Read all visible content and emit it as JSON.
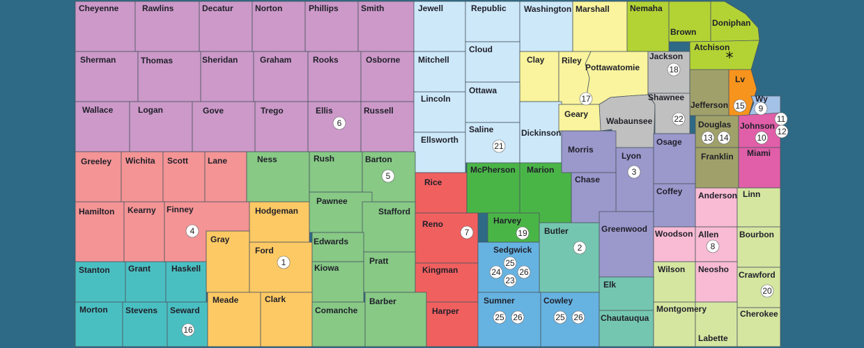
{
  "colors": {
    "background": "#2e6a85",
    "d1": "#fdc964",
    "d2": "#74c6b0",
    "d3": "#9b98cc",
    "d4": "#f49495",
    "d5": "#87c985",
    "d6": "#cc99c9",
    "d7": "#f0605f",
    "d8": "#f8bbd3",
    "d9_10": "#a4c2e8",
    "d10": "#e05fa8",
    "d11": "#a0a06a",
    "d12": "#c0c0c0",
    "d16": "#4abfc2",
    "d17": "#f9f49d",
    "d18": "#c0c0c0",
    "d19": "#4ab547",
    "d20": "#d5e6a1",
    "d21": "#cde8f9",
    "d22": "#b3d335",
    "d_lv": "#f7941d",
    "d_sed": "#66b3e2",
    "d_frank": "#a0a06a"
  },
  "counties": {
    "cheyenne": "Cheyenne",
    "rawlins": "Rawlins",
    "decatur": "Decatur",
    "norton": "Norton",
    "phillips": "Phillips",
    "smith": "Smith",
    "jewell": "Jewell",
    "republic": "Republic",
    "washington": "Washington",
    "marshall": "Marshall",
    "nemaha": "Nemaha",
    "brown": "Brown",
    "doniphan": "Doniphan",
    "atchison": "Atchison",
    "sherman": "Sherman",
    "thomas": "Thomas",
    "sheridan": "Sheridan",
    "graham": "Graham",
    "rooks": "Rooks",
    "osborne": "Osborne",
    "mitchell": "Mitchell",
    "cloud": "Cloud",
    "clay": "Clay",
    "riley": "Riley",
    "pottawatomie": "Pottawatomie",
    "jackson": "Jackson",
    "jefferson": "Jefferson",
    "lv": "Lv",
    "wy": "Wy",
    "wallace": "Wallace",
    "logan": "Logan",
    "gove": "Gove",
    "trego": "Trego",
    "ellis": "Ellis",
    "russell": "Russell",
    "lincoln": "Lincoln",
    "ottawa": "Ottawa",
    "ellsworth": "Ellsworth",
    "saline": "Saline",
    "dickinson": "Dickinson",
    "geary": "Geary",
    "wabaunsee": "Wabaunsee",
    "shawnee": "Shawnee",
    "douglas": "Douglas",
    "johnson": "Johnson",
    "greeley": "Greeley",
    "wichita": "Wichita",
    "scott": "Scott",
    "lane": "Lane",
    "ness": "Ness",
    "rush": "Rush",
    "barton": "Barton",
    "rice": "Rice",
    "mcpherson": "McPherson",
    "marion": "Marion",
    "morris": "Morris",
    "lyon": "Lyon",
    "osage": "Osage",
    "franklin": "Franklin",
    "miami": "Miami",
    "chase": "Chase",
    "hamilton": "Hamilton",
    "kearny": "Kearny",
    "finney": "Finney",
    "hodgeman": "Hodgeman",
    "pawnee": "Pawnee",
    "stafford": "Stafford",
    "reno": "Reno",
    "harvey": "Harvey",
    "butler": "Butler",
    "greenwood": "Greenwood",
    "coffey": "Coffey",
    "anderson": "Anderson",
    "linn": "Linn",
    "gray": "Gray",
    "ford": "Ford",
    "edwards": "Edwards",
    "kiowa": "Kiowa",
    "pratt": "Pratt",
    "kingman": "Kingman",
    "sedgwick": "Sedgwick",
    "woodson": "Woodson",
    "allen": "Allen",
    "bourbon": "Bourbon",
    "stanton": "Stanton",
    "grant": "Grant",
    "haskell": "Haskell",
    "wilson": "Wilson",
    "neosho": "Neosho",
    "crawford": "Crawford",
    "morton": "Morton",
    "stevens": "Stevens",
    "seward": "Seward",
    "meade": "Meade",
    "clark": "Clark",
    "comanche": "Comanche",
    "barber": "Barber",
    "harper": "Harper",
    "sumner": "Sumner",
    "cowley": "Cowley",
    "elk": "Elk",
    "chautauqua": "Chautauqua",
    "montgomery": "Montgomery",
    "labette": "Labette",
    "cherokee": "Cherokee"
  },
  "districts": {
    "d1": "1",
    "d2": "2",
    "d3": "3",
    "d4": "4",
    "d5": "5",
    "d6": "6",
    "d7": "7",
    "d8": "8",
    "d9": "9",
    "d10": "10",
    "d11": "11",
    "d12": "12",
    "d13": "13",
    "d14": "14",
    "d15": "15",
    "d16": "16",
    "d17": "17",
    "d18": "18",
    "d19": "19",
    "d20": "20",
    "d21": "21",
    "d22": "22",
    "d23": "23",
    "d24": "24",
    "d25": "25",
    "d26": "26"
  },
  "markers": {
    "atchison_star": "*"
  }
}
